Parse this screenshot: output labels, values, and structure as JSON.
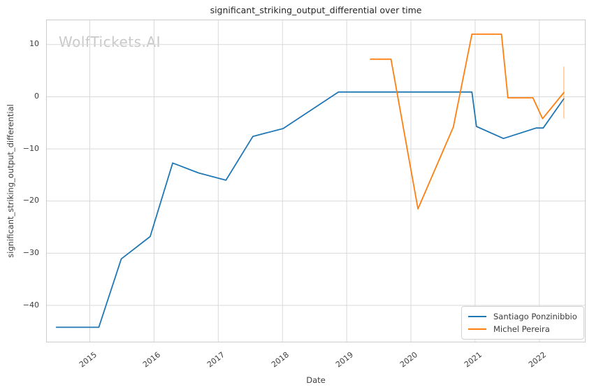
{
  "watermark": {
    "text": "WolfTickets.AI",
    "color": "#c9c9c9"
  },
  "colors": {
    "grid": "#d9d9d9",
    "spine": "#cccccc",
    "tick_text": "#3d3d3d",
    "title_text": "#262626",
    "series_blue": "#1f77b4",
    "series_orange": "#ff7f0e"
  },
  "chart_data": {
    "type": "line",
    "title": "significant_striking_output_differential over time",
    "xlabel": "Date",
    "ylabel": "significant_striking_output_differential",
    "grid": true,
    "legend_position": "lower right",
    "xlim": [
      2014.32,
      2022.72
    ],
    "ylim": [
      -47.1,
      14.8
    ],
    "x_ticks": [
      2015,
      2016,
      2017,
      2018,
      2019,
      2020,
      2021,
      2022
    ],
    "y_ticks": [
      10,
      0,
      -10,
      -20,
      -30,
      -40
    ],
    "series": [
      {
        "name": "Santiago Ponzinibbio",
        "color": "#1f77b4",
        "points": [
          [
            2014.48,
            -44.2
          ],
          [
            2015.14,
            -44.2
          ],
          [
            2015.49,
            -31.1
          ],
          [
            2015.94,
            -26.8
          ],
          [
            2016.29,
            -12.7
          ],
          [
            2016.69,
            -14.6
          ],
          [
            2017.12,
            -16.0
          ],
          [
            2017.54,
            -7.6
          ],
          [
            2018.01,
            -6.1
          ],
          [
            2018.87,
            0.9
          ],
          [
            2020.95,
            0.9
          ],
          [
            2021.02,
            -5.7
          ],
          [
            2021.44,
            -8.0
          ],
          [
            2021.95,
            -6.0
          ],
          [
            2022.06,
            -6.0
          ],
          [
            2022.38,
            -0.4
          ]
        ]
      },
      {
        "name": "Michel Pereira",
        "color": "#ff7f0e",
        "points": [
          [
            2019.37,
            7.2
          ],
          [
            2019.69,
            7.2
          ],
          [
            2020.11,
            -21.5
          ],
          [
            2020.66,
            -5.8
          ],
          [
            2020.95,
            12.0
          ],
          [
            2021.41,
            12.0
          ],
          [
            2021.51,
            -0.2
          ],
          [
            2021.9,
            -0.2
          ],
          [
            2022.05,
            -4.2
          ],
          [
            2022.38,
            0.8
          ]
        ],
        "errorbar": {
          "x": 2022.38,
          "low": -4.2,
          "high": 5.8
        }
      }
    ]
  }
}
